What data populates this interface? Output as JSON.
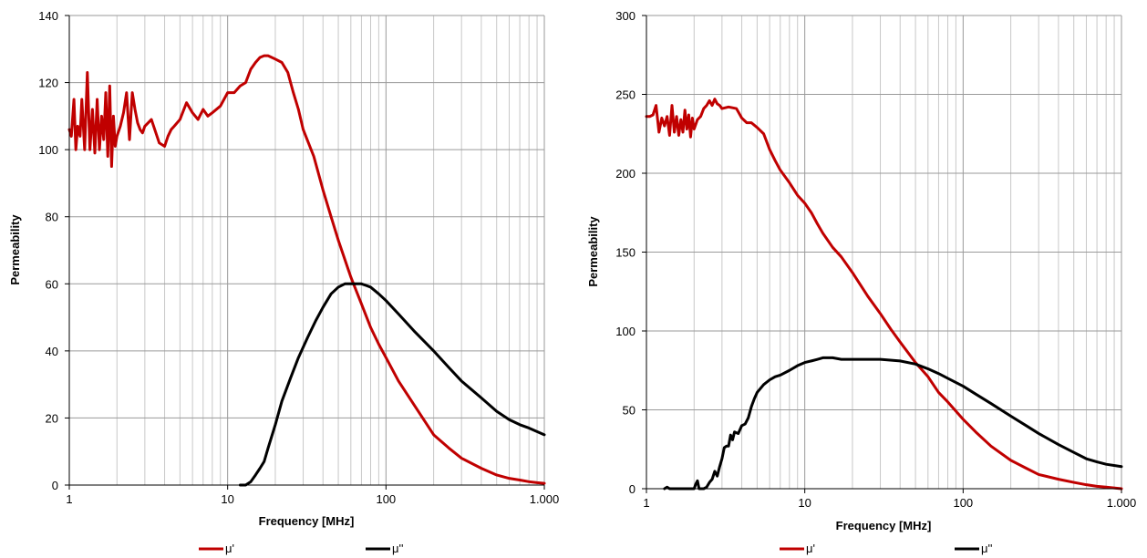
{
  "chart_data": [
    {
      "type": "line",
      "xlabel": "Frequency [MHz]",
      "ylabel": "Permeability",
      "x_scale": "log",
      "xlim": [
        1,
        1000
      ],
      "ylim": [
        0,
        140
      ],
      "grid": true,
      "legend_position": "bottom",
      "x_ticks": [
        "1",
        "10",
        "100",
        "1.000"
      ],
      "y_ticks": [
        "0",
        "20",
        "40",
        "60",
        "80",
        "100",
        "120",
        "140"
      ],
      "series": [
        {
          "name": "μ'",
          "color": "#c00000",
          "x": [
            1,
            1.03,
            1.07,
            1.1,
            1.13,
            1.17,
            1.2,
            1.25,
            1.3,
            1.35,
            1.4,
            1.45,
            1.5,
            1.55,
            1.6,
            1.65,
            1.7,
            1.75,
            1.8,
            1.85,
            1.9,
            1.95,
            2.0,
            2.1,
            2.2,
            2.3,
            2.4,
            2.5,
            2.6,
            2.7,
            2.8,
            2.9,
            3.0,
            3.3,
            3.7,
            4.0,
            4.2,
            4.4,
            4.6,
            5.0,
            5.5,
            6.0,
            6.5,
            7.0,
            7.5,
            8.0,
            9.0,
            10,
            11,
            12,
            13,
            14,
            15,
            16,
            17,
            18,
            19,
            20,
            22,
            24,
            26,
            28,
            30,
            35,
            40,
            45,
            50,
            60,
            70,
            80,
            90,
            100,
            120,
            150,
            200,
            250,
            300,
            400,
            500,
            600,
            700,
            800,
            900,
            1000
          ],
          "values": [
            106,
            104,
            115,
            100,
            107,
            104,
            115,
            100,
            123,
            100,
            112,
            99,
            115,
            100,
            110,
            103,
            117,
            98,
            119,
            95,
            110,
            101,
            104,
            107,
            111,
            117,
            103,
            117,
            112,
            108,
            106,
            105,
            107,
            109,
            102,
            101,
            104,
            106,
            107,
            109,
            114,
            111,
            109,
            112,
            110,
            111,
            113,
            117,
            117,
            119,
            120,
            124,
            126,
            127.5,
            128,
            128,
            127.5,
            127,
            126,
            123,
            117,
            112,
            106,
            98,
            88,
            80,
            73,
            62,
            54,
            47,
            42,
            38,
            31,
            24,
            15,
            11,
            8,
            5,
            3,
            2,
            1.5,
            1,
            0.7,
            0.5
          ]
        },
        {
          "name": "μ''",
          "color": "#000000",
          "x": [
            12,
            13,
            14,
            15,
            16,
            17,
            18,
            20,
            22,
            25,
            28,
            32,
            36,
            40,
            45,
            50,
            55,
            60,
            65,
            70,
            75,
            80,
            90,
            100,
            120,
            150,
            200,
            250,
            300,
            400,
            500,
            600,
            700,
            800,
            1000
          ],
          "values": [
            0,
            0,
            1,
            3,
            5,
            7,
            11,
            18,
            25,
            32,
            38,
            44,
            49,
            53,
            57,
            59,
            60,
            60,
            60,
            60,
            59.5,
            59,
            57,
            55,
            51,
            46,
            40,
            35,
            31,
            26,
            22,
            19.5,
            18,
            17,
            15
          ]
        }
      ]
    },
    {
      "type": "line",
      "xlabel": "Frequency [MHz]",
      "ylabel": "Permeability",
      "x_scale": "log",
      "xlim": [
        1,
        1000
      ],
      "ylim": [
        0,
        300
      ],
      "grid": true,
      "legend_position": "bottom",
      "x_ticks": [
        "1",
        "10",
        "100",
        "1.000"
      ],
      "y_ticks": [
        "0",
        "50",
        "100",
        "150",
        "200",
        "250",
        "300"
      ],
      "series": [
        {
          "name": "μ'",
          "color": "#c00000",
          "x": [
            1,
            1.05,
            1.1,
            1.15,
            1.2,
            1.25,
            1.3,
            1.35,
            1.4,
            1.45,
            1.5,
            1.55,
            1.6,
            1.65,
            1.7,
            1.75,
            1.8,
            1.85,
            1.9,
            1.95,
            2.0,
            2.1,
            2.2,
            2.3,
            2.4,
            2.5,
            2.6,
            2.7,
            2.8,
            2.9,
            3.0,
            3.3,
            3.7,
            4.0,
            4.3,
            4.6,
            5.0,
            5.5,
            6.0,
            6.5,
            7.0,
            8.0,
            9.0,
            10,
            11,
            12,
            13,
            15,
            17,
            20,
            25,
            30,
            35,
            40,
            50,
            60,
            70,
            80,
            100,
            120,
            150,
            200,
            250,
            300,
            400,
            500,
            600,
            700,
            800,
            1000
          ],
          "values": [
            236,
            236,
            237,
            243,
            226,
            235,
            230,
            236,
            224,
            243,
            226,
            236,
            224,
            234,
            226,
            240,
            228,
            237,
            223,
            235,
            228,
            234,
            236,
            241,
            243,
            246,
            243,
            247,
            244,
            243,
            241,
            242,
            241,
            235,
            232,
            232,
            229,
            225,
            215,
            208,
            202,
            194,
            186,
            181,
            175,
            168,
            162,
            153,
            147,
            137,
            122,
            111,
            101,
            93,
            80,
            71,
            61,
            55,
            44,
            36,
            27,
            18,
            13,
            9,
            6,
            4,
            2.5,
            1.5,
            1,
            0
          ]
        },
        {
          "name": "μ''",
          "color": "#000000",
          "x": [
            1.3,
            1.35,
            1.4,
            2.0,
            2.05,
            2.1,
            2.15,
            2.2,
            2.3,
            2.4,
            2.5,
            2.6,
            2.7,
            2.8,
            2.9,
            3.0,
            3.1,
            3.2,
            3.3,
            3.4,
            3.5,
            3.6,
            3.8,
            4.0,
            4.2,
            4.4,
            4.6,
            4.8,
            5.0,
            5.5,
            6.0,
            6.5,
            7.0,
            8.0,
            9.0,
            10,
            11,
            12,
            13,
            14,
            15,
            17,
            20,
            25,
            30,
            40,
            50,
            60,
            70,
            80,
            100,
            120,
            150,
            200,
            250,
            300,
            400,
            500,
            600,
            700,
            800,
            1000
          ],
          "values": [
            0,
            1,
            0,
            0,
            3,
            5,
            0,
            0,
            0,
            1,
            4,
            6,
            11,
            8,
            14,
            19,
            26,
            27,
            27,
            34,
            31,
            36,
            35,
            40,
            41,
            45,
            52,
            57,
            61,
            66,
            69,
            71,
            72,
            75,
            78,
            80,
            81,
            82,
            83,
            83,
            83,
            82,
            82,
            82,
            82,
            81,
            79,
            76,
            73,
            70,
            65,
            60,
            54,
            46,
            40,
            35,
            28,
            23,
            19,
            17,
            15.5,
            14
          ]
        }
      ]
    }
  ]
}
